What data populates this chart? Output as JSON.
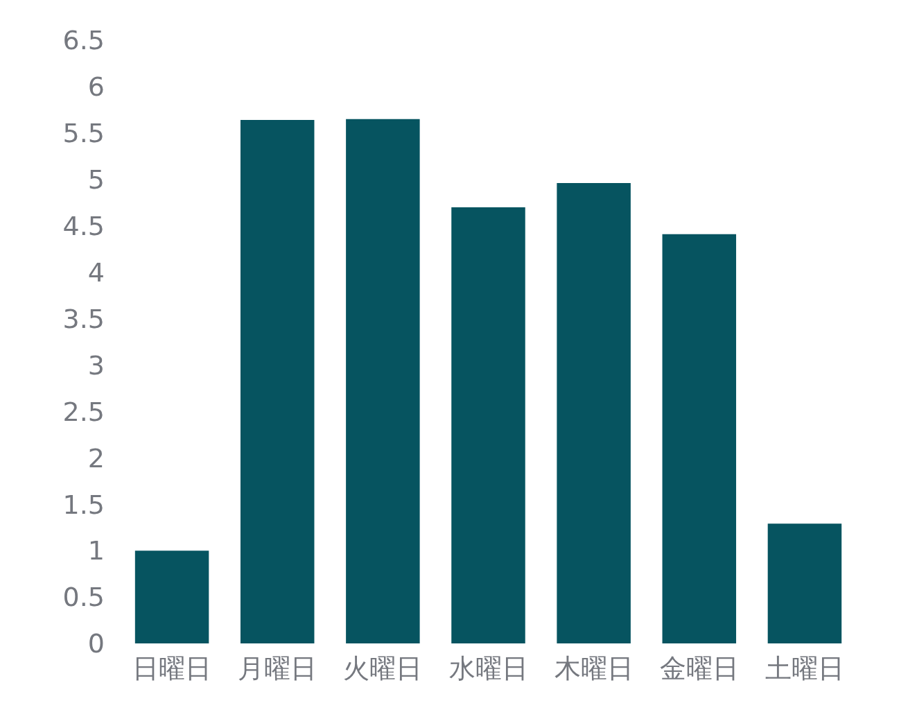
{
  "chart_data": {
    "type": "bar",
    "categories": [
      "日曜日",
      "月曜日",
      "火曜日",
      "水曜日",
      "木曜日",
      "金曜日",
      "土曜日"
    ],
    "series": [
      {
        "color": "#065460",
        "values": [
          1.0,
          5.64,
          5.65,
          4.7,
          4.96,
          4.41,
          1.29
        ]
      }
    ],
    "ylim": [
      0,
      6.5
    ],
    "yticks": [
      0,
      0.5,
      1,
      1.5,
      2,
      2.5,
      3,
      3.5,
      4,
      4.5,
      5,
      5.5,
      6,
      6.5
    ]
  }
}
